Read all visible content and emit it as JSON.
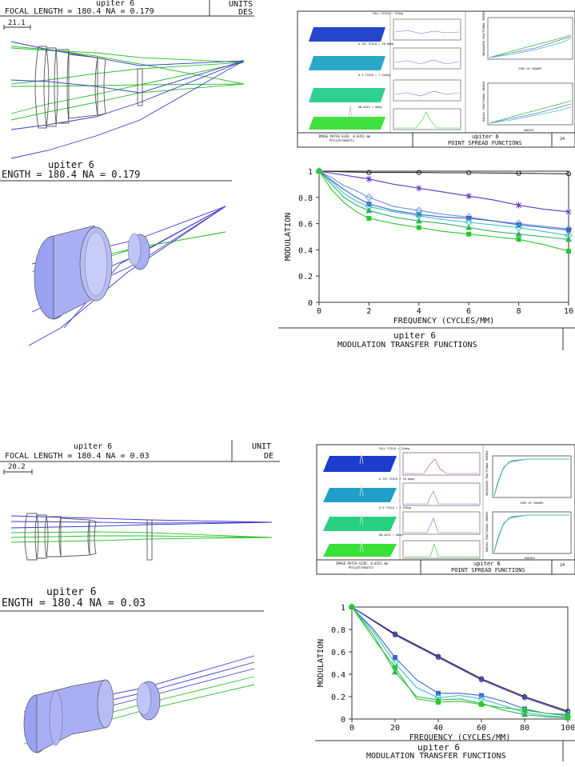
{
  "top_section": {
    "layout_header": {
      "title": "upiter 6",
      "subtitle": "FOCAL LENGTH = 180.4   NA = 0.179",
      "units_label": "UNITS",
      "des_label": "DES",
      "scale_value": "21.1"
    },
    "shaded_header": {
      "title": "upiter 6",
      "subtitle": "ENGTH = 180.4   NA = 0.179"
    },
    "psf_panel": {
      "caption_title": "upiter 6",
      "caption_sub": "POINT SPREAD FUNCTIONS",
      "patch_text": "IMAGE PATCH SIZE: 0.0351 mm",
      "poly_text": "Polychromatic",
      "field_labels": [
        "FULL FIELD = 15deg",
        "0.707 FIELD = 10.6deg",
        "0.5 FIELD = 7.49deg",
        "ON-AXIS = 0deg"
      ],
      "right_top_ylabel": "ENSQUARED FRACTIONAL ENERGY",
      "right_top_xlabel": "SIDE OF SQUARE",
      "right_bottom_ylabel": "RADIAL FRACTIONAL ENERGY",
      "right_bottom_xlabel": "RADIUS",
      "corner_text": "24"
    },
    "mtf_caption": {
      "title": "upiter 6",
      "subtitle": "MODULATION TRANSFER FUNCTIONS"
    }
  },
  "bottom_section": {
    "layout_header": {
      "title": "upiter 6",
      "subtitle": "FOCAL LENGTH = 180.4   NA = 0.03",
      "units_label": "UNIT",
      "des_label": "DE",
      "scale_value": "20.2"
    },
    "shaded_header": {
      "title": "upiter 6",
      "subtitle": "ENGTH = 180.4   NA = 0.03"
    },
    "psf_panel": {
      "caption_title": "upiter 6",
      "caption_sub": "POINT SPREAD FUNCTIONS",
      "patch_text": "IMAGE PATCH SIZE: 0.0351 mm",
      "poly_text": "Polychromatic",
      "field_labels": [
        "FULL FIELD = 15deg",
        "0.707 FIELD = 10.6deg",
        "0.5 FIELD = 7.49deg",
        "ON-AXIS = 0deg"
      ],
      "right_top_ylabel": "ENSQUARED FRACTIONAL ENERGY",
      "right_top_xlabel": "SIDE OF SQUARE",
      "right_bottom_ylabel": "RADIAL FRACTIONAL ENERGY",
      "right_bottom_xlabel": "RADIUS",
      "corner_text": "24"
    },
    "mtf_caption": {
      "title": "upiter 6",
      "subtitle": "MODULATION TRANSFER FUNCTIONS"
    }
  },
  "colors": {
    "ray_blue": "#3a3ad0",
    "ray_green": "#2ec02e",
    "lens_fill": "#a9aef5",
    "lens_edge": "#555"
  },
  "chart_data": [
    {
      "type": "line",
      "title": "",
      "xlabel": "FREQUENCY (CYCLES/MM)",
      "ylabel": "MODULATION",
      "xlim": [
        0,
        10
      ],
      "ylim": [
        0,
        1
      ],
      "x_ticks": [
        0,
        2,
        4,
        6,
        8,
        10
      ],
      "y_ticks": [
        0,
        0.2,
        0.4,
        0.6,
        0.8,
        1
      ],
      "series": [
        {
          "color": "#222222",
          "marker": "circle",
          "x": [
            0,
            1,
            2,
            3,
            4,
            5,
            6,
            7,
            8,
            9,
            10
          ],
          "y": [
            1,
            0.995,
            0.99,
            0.99,
            0.99,
            0.988,
            0.988,
            0.986,
            0.984,
            0.982,
            0.98
          ]
        },
        {
          "color": "#5a34c8",
          "marker": "star",
          "x": [
            0,
            1,
            2,
            3,
            4,
            5,
            6,
            7,
            8,
            9,
            10
          ],
          "y": [
            1,
            0.97,
            0.94,
            0.9,
            0.87,
            0.84,
            0.81,
            0.78,
            0.74,
            0.71,
            0.69
          ]
        },
        {
          "color": "#6a8ee0",
          "marker": "diamond",
          "x": [
            0,
            0.5,
            1,
            1.5,
            2,
            3,
            4,
            5,
            6,
            7,
            8,
            9,
            10
          ],
          "y": [
            1,
            0.95,
            0.89,
            0.85,
            0.8,
            0.73,
            0.7,
            0.67,
            0.65,
            0.62,
            0.6,
            0.58,
            0.56
          ]
        },
        {
          "color": "#3a66c8",
          "marker": "square",
          "x": [
            0,
            0.5,
            1,
            1.5,
            2,
            3,
            4,
            5,
            6,
            7,
            8,
            9,
            10
          ],
          "y": [
            1,
            0.93,
            0.86,
            0.8,
            0.75,
            0.7,
            0.67,
            0.65,
            0.64,
            0.62,
            0.59,
            0.57,
            0.55
          ]
        },
        {
          "color": "#40c0c8",
          "marker": "diamond",
          "x": [
            0,
            0.5,
            1,
            1.5,
            2,
            3,
            4,
            5,
            6,
            7,
            8,
            9,
            10
          ],
          "y": [
            1,
            0.92,
            0.83,
            0.77,
            0.73,
            0.69,
            0.66,
            0.63,
            0.61,
            0.59,
            0.57,
            0.54,
            0.51
          ]
        },
        {
          "color": "#30b060",
          "marker": "triangle",
          "x": [
            0,
            0.5,
            1,
            1.5,
            2,
            3,
            4,
            5,
            6,
            7,
            8,
            9,
            10
          ],
          "y": [
            1,
            0.9,
            0.8,
            0.74,
            0.7,
            0.65,
            0.62,
            0.6,
            0.57,
            0.54,
            0.52,
            0.5,
            0.48
          ]
        },
        {
          "color": "#28c828",
          "marker": "square",
          "x": [
            0,
            0.5,
            1,
            1.5,
            2,
            3,
            4,
            5,
            6,
            7,
            8,
            9,
            10
          ],
          "y": [
            1,
            0.86,
            0.76,
            0.69,
            0.64,
            0.6,
            0.57,
            0.54,
            0.52,
            0.5,
            0.48,
            0.44,
            0.39
          ]
        }
      ]
    },
    {
      "type": "line",
      "title": "",
      "xlabel": "FREQUENCY (CYCLES/MM)",
      "ylabel": "MODULATION",
      "xlim": [
        0,
        100
      ],
      "ylim": [
        0,
        1
      ],
      "x_ticks": [
        0,
        20,
        40,
        60,
        80,
        100
      ],
      "y_ticks": [
        0,
        0.2,
        0.4,
        0.6,
        0.8,
        1
      ],
      "series": [
        {
          "color": "#222222",
          "marker": "circle",
          "x": [
            0,
            20,
            40,
            60,
            80,
            100
          ],
          "y": [
            1,
            0.76,
            0.56,
            0.36,
            0.2,
            0.07
          ]
        },
        {
          "color": "#3a3ad0",
          "marker": "circle",
          "x": [
            0,
            20,
            40,
            60,
            80,
            100
          ],
          "y": [
            1,
            0.75,
            0.55,
            0.35,
            0.19,
            0.06
          ]
        },
        {
          "color": "#3a66c8",
          "marker": "square",
          "x": [
            0,
            10,
            20,
            30,
            40,
            50,
            60,
            70,
            80,
            90,
            100
          ],
          "y": [
            1,
            0.8,
            0.55,
            0.35,
            0.23,
            0.23,
            0.21,
            0.16,
            0.09,
            0.05,
            0.04
          ]
        },
        {
          "color": "#40c0c8",
          "marker": "diamond",
          "x": [
            0,
            10,
            20,
            30,
            40,
            50,
            60,
            70,
            80,
            90,
            100
          ],
          "y": [
            1,
            0.78,
            0.5,
            0.28,
            0.19,
            0.21,
            0.18,
            0.12,
            0.06,
            0.03,
            0.02
          ]
        },
        {
          "color": "#30b060",
          "marker": "triangle",
          "x": [
            0,
            10,
            20,
            30,
            40,
            50,
            60,
            70,
            80,
            90,
            100
          ],
          "y": [
            1,
            0.75,
            0.42,
            0.2,
            0.17,
            0.18,
            0.14,
            0.08,
            0.04,
            0.02,
            0.01
          ]
        },
        {
          "color": "#28c828",
          "marker": "square",
          "x": [
            0,
            10,
            20,
            30,
            40,
            50,
            60,
            70,
            80,
            90,
            100
          ],
          "y": [
            1,
            0.72,
            0.46,
            0.18,
            0.15,
            0.16,
            0.13,
            0.1,
            0.08,
            0.05,
            0.03
          ]
        }
      ]
    }
  ]
}
